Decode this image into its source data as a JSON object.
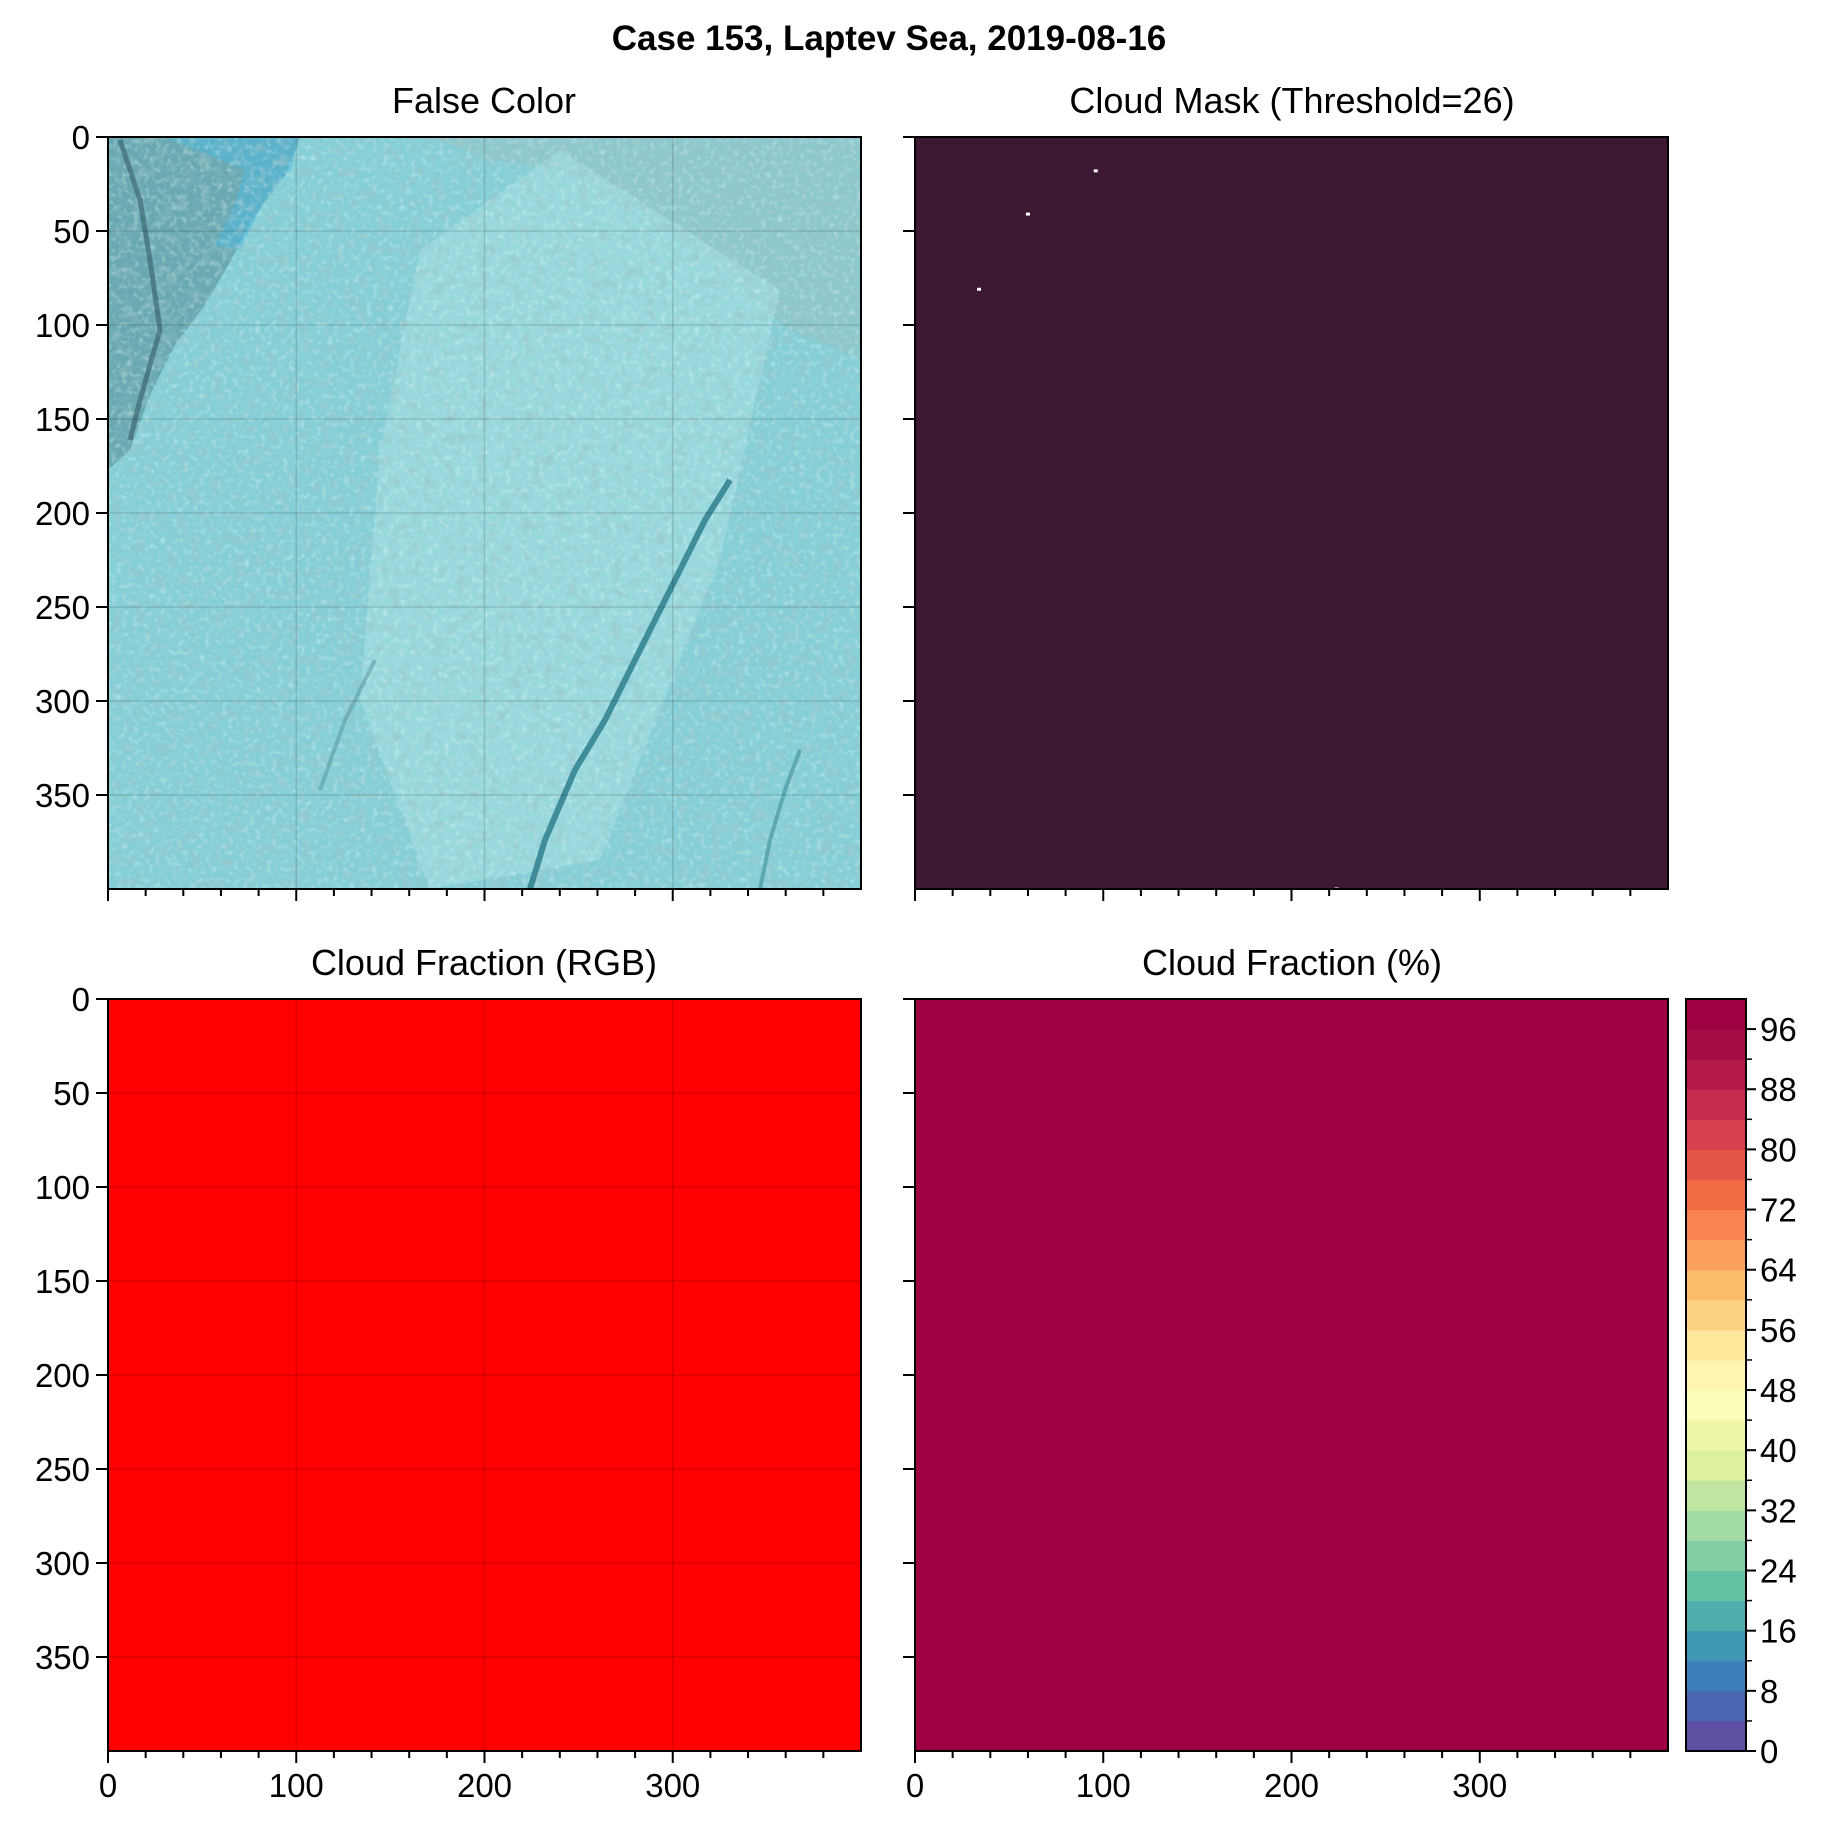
{
  "figure": {
    "suptitle": "Case 153, Laptev Sea, 2019-08-16"
  },
  "colors": {
    "frame": "#000000",
    "mask_background": "#3c1832",
    "mask_speck": "#ffffff",
    "rgb_fraction": "#ff0000",
    "percent_fraction": "#9e0142",
    "false_color_base": "#86cfd6",
    "false_color_dark": "#3d6f7a",
    "false_color_light": "#a8e2e6",
    "false_color_cyan": "#4fb9e0"
  },
  "chart_data": [
    {
      "type": "heatmap",
      "panel": "top-left",
      "title": "False Color",
      "xlim": [
        0,
        400
      ],
      "ylim": [
        400,
        0
      ],
      "xticks": [
        "0",
        "100",
        "200",
        "300"
      ],
      "yticks": [
        "0",
        "50",
        "100",
        "150",
        "200",
        "250",
        "300",
        "350"
      ],
      "show_xtick_labels": false,
      "show_ytick_labels": true,
      "grid": true,
      "fill": "image"
    },
    {
      "type": "heatmap",
      "panel": "top-right",
      "title": "Cloud Mask (Threshold=26)",
      "xlim": [
        0,
        400
      ],
      "ylim": [
        400,
        0
      ],
      "xticks": [
        "0",
        "100",
        "200",
        "300"
      ],
      "yticks": [
        "0",
        "50",
        "100",
        "150",
        "200",
        "250",
        "300",
        "350"
      ],
      "show_xtick_labels": false,
      "show_ytick_labels": false,
      "grid": false,
      "fill": "mask",
      "clear_pixels": [
        [
          96,
          18
        ],
        [
          60,
          41
        ],
        [
          34,
          81
        ],
        [
          224,
          400
        ]
      ]
    },
    {
      "type": "heatmap",
      "panel": "bottom-left",
      "title": "Cloud Fraction (RGB)",
      "xlim": [
        0,
        400
      ],
      "ylim": [
        400,
        0
      ],
      "xticks": [
        "0",
        "100",
        "200",
        "300"
      ],
      "yticks": [
        "0",
        "50",
        "100",
        "150",
        "200",
        "250",
        "300",
        "350"
      ],
      "show_xtick_labels": true,
      "show_ytick_labels": true,
      "grid": true,
      "fill": "rgb_fraction",
      "value": 100
    },
    {
      "type": "heatmap",
      "panel": "bottom-right",
      "title": "Cloud Fraction (%)",
      "xlim": [
        0,
        400
      ],
      "ylim": [
        400,
        0
      ],
      "xticks": [
        "0",
        "100",
        "200",
        "300"
      ],
      "yticks": [
        "0",
        "50",
        "100",
        "150",
        "200",
        "250",
        "300",
        "350"
      ],
      "show_xtick_labels": true,
      "show_ytick_labels": false,
      "grid": false,
      "fill": "percent_fraction",
      "value": 100,
      "colorbar": {
        "min": 0,
        "max": 100,
        "step": 4,
        "ticks": [
          "0",
          "8",
          "16",
          "24",
          "32",
          "40",
          "48",
          "56",
          "64",
          "72",
          "80",
          "88",
          "96"
        ],
        "colors": [
          "#5e4fa2",
          "#4966b0",
          "#3d7fb9",
          "#3e98b5",
          "#4fafad",
          "#66c2a5",
          "#83cea4",
          "#a2daa4",
          "#c0e5a0",
          "#ddf09c",
          "#eef7a7",
          "#fbfdba",
          "#fff5b0",
          "#fee79a",
          "#fed283",
          "#fdbb6c",
          "#fca15d",
          "#f88550",
          "#f16c45",
          "#e35547",
          "#d7414e",
          "#c52b4c",
          "#b41947",
          "#a30c44",
          "#9e0142"
        ]
      }
    }
  ]
}
